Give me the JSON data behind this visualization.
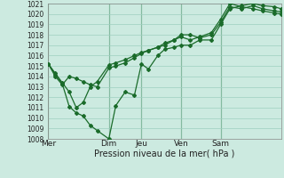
{
  "background_color": "#cceae0",
  "grid_color": "#9ecfbf",
  "line_color": "#1a6b2a",
  "xlabel": "Pression niveau de la mer( hPa )",
  "ylim": [
    1008,
    1021
  ],
  "yticks": [
    1008,
    1009,
    1010,
    1011,
    1012,
    1013,
    1014,
    1015,
    1016,
    1017,
    1018,
    1019,
    1020,
    1021
  ],
  "xtick_labels": [
    "Mer",
    "Dim",
    "Jeu",
    "Ven",
    "Sam"
  ],
  "xtick_positions": [
    0.0,
    0.26,
    0.4,
    0.57,
    0.74
  ],
  "vline_positions": [
    0.0,
    0.26,
    0.4,
    0.57,
    0.74
  ],
  "series": [
    {
      "x": [
        0.0,
        0.03,
        0.06,
        0.09,
        0.12,
        0.15,
        0.18,
        0.21,
        0.26,
        0.29,
        0.33,
        0.37,
        0.4,
        0.43,
        0.47,
        0.5,
        0.54,
        0.57,
        0.61,
        0.65,
        0.7,
        0.74,
        0.78,
        0.83,
        0.88,
        0.92,
        0.97,
        1.0
      ],
      "y": [
        1015.2,
        1014.2,
        1013.3,
        1011.1,
        1010.5,
        1010.2,
        1009.3,
        1008.8,
        1008.0,
        1011.2,
        1012.5,
        1012.2,
        1015.2,
        1014.7,
        1016.0,
        1016.6,
        1016.8,
        1017.0,
        1017.0,
        1017.5,
        1017.5,
        1019.0,
        1020.5,
        1020.8,
        1021.0,
        1020.8,
        1020.7,
        1020.5
      ]
    },
    {
      "x": [
        0.0,
        0.03,
        0.06,
        0.09,
        0.12,
        0.15,
        0.18,
        0.21,
        0.26,
        0.29,
        0.33,
        0.37,
        0.4,
        0.43,
        0.47,
        0.5,
        0.54,
        0.57,
        0.61,
        0.65,
        0.7,
        0.74,
        0.78,
        0.83,
        0.88,
        0.92,
        0.97,
        1.0
      ],
      "y": [
        1015.2,
        1014.0,
        1013.2,
        1014.0,
        1013.8,
        1013.5,
        1013.2,
        1013.0,
        1014.8,
        1015.0,
        1015.3,
        1015.8,
        1016.2,
        1016.5,
        1016.8,
        1017.0,
        1017.5,
        1018.0,
        1018.0,
        1017.7,
        1018.0,
        1019.2,
        1020.7,
        1020.5,
        1020.8,
        1020.5,
        1020.3,
        1020.2
      ]
    },
    {
      "x": [
        0.0,
        0.03,
        0.06,
        0.09,
        0.12,
        0.15,
        0.18,
        0.21,
        0.26,
        0.29,
        0.33,
        0.37,
        0.4,
        0.43,
        0.47,
        0.5,
        0.54,
        0.57,
        0.61,
        0.65,
        0.7,
        0.74,
        0.78,
        0.83,
        0.88,
        0.92,
        0.97,
        1.0
      ],
      "y": [
        1015.2,
        1014.3,
        1013.4,
        1012.5,
        1011.0,
        1011.5,
        1013.0,
        1013.5,
        1015.1,
        1015.3,
        1015.6,
        1016.0,
        1016.3,
        1016.5,
        1016.8,
        1017.2,
        1017.5,
        1017.8,
        1017.5,
        1017.8,
        1018.2,
        1019.5,
        1021.0,
        1020.7,
        1020.5,
        1020.3,
        1020.1,
        1020.0
      ]
    }
  ],
  "ylabel_fontsize": 5.5,
  "xlabel_fontsize": 7,
  "xtick_fontsize": 6.5
}
